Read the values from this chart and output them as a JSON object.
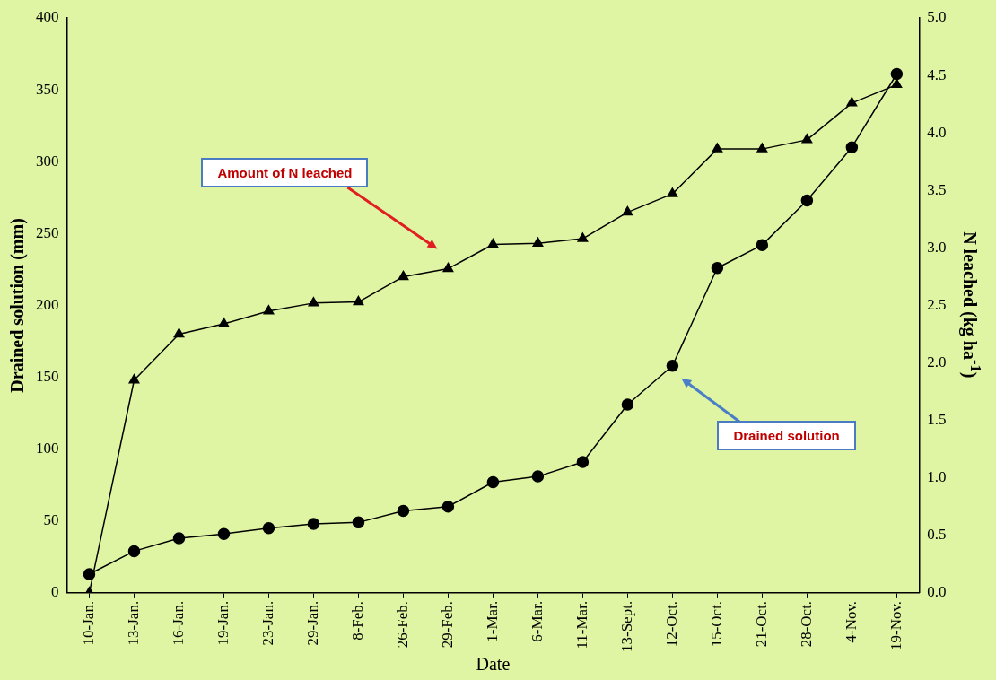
{
  "chart_data": {
    "type": "line",
    "xlabel": "Date",
    "ylabel": "Drained solution (mm)",
    "y2label": "N leached (kg ha$^{-1}$)",
    "categories": [
      "10-Jan.",
      "13-Jan.",
      "16-Jan.",
      "19-Jan.",
      "23-Jan.",
      "29-Jan.",
      "8-Feb.",
      "26-Feb.",
      "29-Feb.",
      "1-Mar.",
      "6-Mar.",
      "11-Mar.",
      "13-Sept.",
      "12-Oct.",
      "15-Oct.",
      "21-Oct.",
      "28-Oct.",
      "4-Nov.",
      "19-Nov."
    ],
    "series": [
      {
        "color": "#000000",
        "marker": "circle",
        "values": [
          13,
          29,
          38,
          41,
          45,
          48,
          49,
          57,
          60,
          77,
          81,
          91,
          131,
          158,
          226,
          242,
          273,
          310,
          361
        ]
      },
      {
        "color": "#000000",
        "marker": "triangle",
        "axis": "y2",
        "values": [
          0.0,
          1.85,
          2.25,
          2.34,
          2.45,
          2.52,
          2.53,
          2.75,
          2.82,
          3.03,
          3.04,
          3.08,
          3.31,
          3.47,
          3.86,
          3.86,
          3.94,
          4.26,
          4.42
        ]
      }
    ],
    "ylim": [
      0,
      400
    ],
    "yticks": [
      0,
      50,
      100,
      150,
      200,
      250,
      300,
      350,
      400
    ],
    "y2lim": [
      0,
      5
    ],
    "y2ticks": [
      {
        "value": 0,
        "label": "0.0"
      },
      {
        "value": 0.5,
        "label": "0.5"
      },
      {
        "value": 1,
        "label": "1.0"
      },
      {
        "value": 1.5,
        "label": "1.5"
      },
      {
        "value": 2,
        "label": "2.0"
      },
      {
        "value": 2.5,
        "label": "2.5"
      },
      {
        "value": 3,
        "label": "3.0"
      },
      {
        "value": 3.5,
        "label": "3.5"
      },
      {
        "value": 4,
        "label": "4.0"
      },
      {
        "value": 4.5,
        "label": "4.5"
      },
      {
        "value": 5,
        "label": "5.0"
      }
    ],
    "annotations": [
      "Amount of N leached",
      "Drained solution"
    ],
    "grid": false,
    "legend": false
  }
}
